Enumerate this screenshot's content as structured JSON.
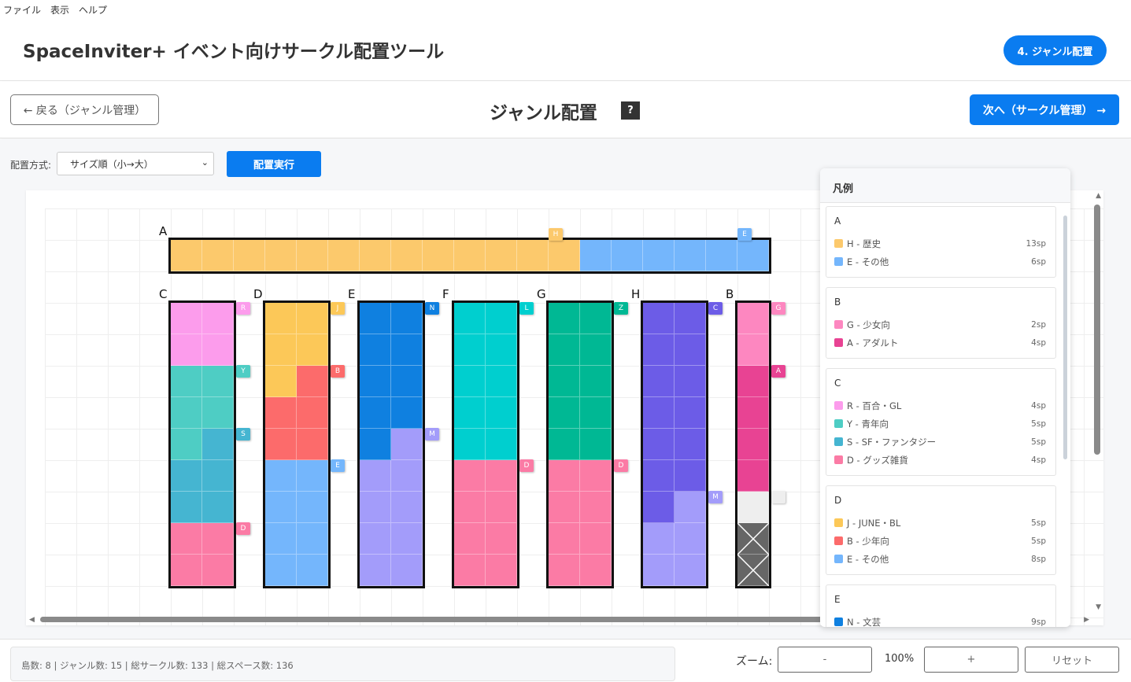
{
  "menu": [
    "ファイル",
    "表示",
    "ヘルプ"
  ],
  "app_title": "SpaceInviter+ イベント向けサークル配置ツール",
  "step_badge": "4. ジャンル配置",
  "nav": {
    "back": "← 戻る（ジャンル管理）",
    "title": "ジャンル配置",
    "help": "?",
    "next": "次へ（サークル管理） →"
  },
  "controls": {
    "method_label": "配置方式:",
    "method_value": "サイズ順（小→大）",
    "run": "配置実行"
  },
  "colors": {
    "accent": "#0a7cf0"
  },
  "genres": {
    "H": {
      "name": "歴史",
      "color": "#fcc96c"
    },
    "E": {
      "name": "その他",
      "color": "#74b6fc"
    },
    "G": {
      "name": "少女向",
      "color": "#fd87c0"
    },
    "A": {
      "name": "アダルト",
      "color": "#e84393"
    },
    "R": {
      "name": "百合・GL",
      "color": "#fc9cec"
    },
    "Y": {
      "name": "青年向",
      "color": "#4ecdc4"
    },
    "S": {
      "name": "SF・ファンタジー",
      "color": "#45b5d1"
    },
    "D": {
      "name": "グッズ雑貨",
      "color": "#fb7ba5"
    },
    "J": {
      "name": "JUNE・BL",
      "color": "#fcc858"
    },
    "B": {
      "name": "少年向",
      "color": "#fc6b6b"
    },
    "N": {
      "name": "文芸",
      "color": "#0f80e0"
    },
    "M": {
      "name": "",
      "color": "#a39cfa"
    },
    "L": {
      "name": "",
      "color": "#00cfcf"
    },
    "Z": {
      "name": "",
      "color": "#00b894"
    },
    "C": {
      "name": "",
      "color": "#6c5ce7"
    }
  },
  "islands": [
    {
      "name": "A",
      "orientation": "horizontal",
      "runs": [
        [
          "H",
          13
        ],
        [
          "E",
          6
        ]
      ]
    },
    {
      "name": "C",
      "runs": [
        [
          "R",
          4
        ],
        [
          "Y",
          5
        ],
        [
          "S",
          5
        ],
        [
          "D",
          4
        ]
      ]
    },
    {
      "name": "D",
      "runs": [
        [
          "J",
          5
        ],
        [
          "B",
          5
        ],
        [
          "E",
          8
        ]
      ]
    },
    {
      "name": "E",
      "runs": [
        [
          "N",
          9
        ],
        [
          "M",
          9
        ]
      ]
    },
    {
      "name": "F",
      "runs": [
        [
          "L",
          10
        ],
        [
          "D",
          8
        ]
      ]
    },
    {
      "name": "G",
      "runs": [
        [
          "Z",
          10
        ],
        [
          "D",
          8
        ]
      ]
    },
    {
      "name": "H",
      "runs": [
        [
          "C",
          13
        ],
        [
          "M",
          5
        ]
      ]
    },
    {
      "name": "B",
      "runs": [
        [
          "G",
          2
        ],
        [
          "A",
          4
        ]
      ],
      "empty": 1,
      "blocked": 2
    }
  ],
  "legend": {
    "title": "凡例",
    "groups": [
      {
        "name": "A",
        "items": [
          {
            "code": "H",
            "label": "H - 歴史",
            "sp": "13sp"
          },
          {
            "code": "E",
            "label": "E - その他",
            "sp": "6sp"
          }
        ]
      },
      {
        "name": "B",
        "items": [
          {
            "code": "G",
            "label": "G - 少女向",
            "sp": "2sp"
          },
          {
            "code": "A",
            "label": "A - アダルト",
            "sp": "4sp"
          }
        ]
      },
      {
        "name": "C",
        "items": [
          {
            "code": "R",
            "label": "R - 百合・GL",
            "sp": "4sp"
          },
          {
            "code": "Y",
            "label": "Y - 青年向",
            "sp": "5sp"
          },
          {
            "code": "S",
            "label": "S - SF・ファンタジー",
            "sp": "5sp"
          },
          {
            "code": "D",
            "label": "D - グッズ雑貨",
            "sp": "4sp"
          }
        ]
      },
      {
        "name": "D",
        "items": [
          {
            "code": "J",
            "label": "J - JUNE・BL",
            "sp": "5sp"
          },
          {
            "code": "B",
            "label": "B - 少年向",
            "sp": "5sp"
          },
          {
            "code": "E",
            "label": "E - その他",
            "sp": "8sp"
          }
        ]
      },
      {
        "name": "E",
        "items": [
          {
            "code": "N",
            "label": "N - 文芸",
            "sp": "9sp"
          }
        ]
      }
    ]
  },
  "status": "島数: 8 | ジャンル数: 15 | 総サークル数: 133 | 総スペース数: 136",
  "zoom": {
    "label": "ズーム:",
    "minus": "-",
    "value": "100%",
    "plus": "+",
    "reset": "リセット"
  }
}
